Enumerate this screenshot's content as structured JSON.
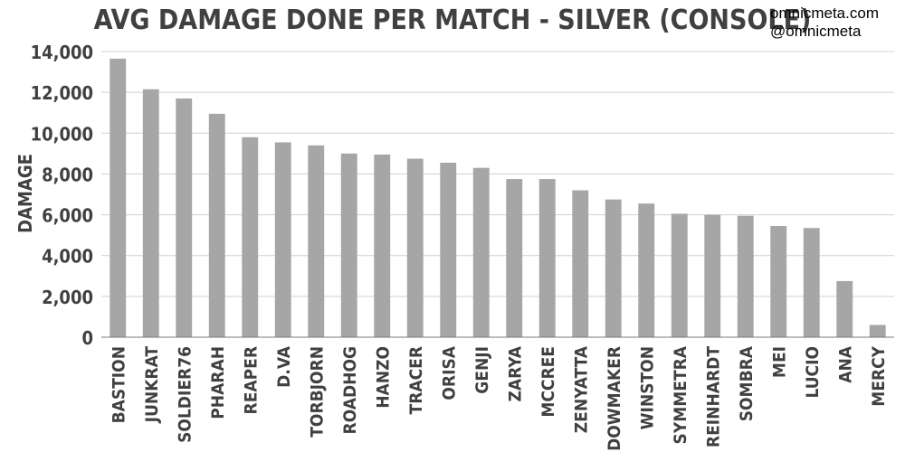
{
  "watermark": {
    "site": "omnicmeta.com",
    "handle": "@omnicmeta"
  },
  "colors": {
    "bar": "#a6a6a6",
    "grid": "#d0d0d0",
    "axis": "#7a7a7a",
    "text": "#404040"
  },
  "chart_data": {
    "type": "bar",
    "title": "AVG DAMAGE DONE PER MATCH - SILVER (CONSOLE)",
    "ylabel": "DAMAGE",
    "xlabel": "",
    "ylim": [
      0,
      14000
    ],
    "yticks": [
      0,
      2000,
      4000,
      6000,
      8000,
      10000,
      12000,
      14000
    ],
    "ytick_labels": [
      "0",
      "2,000",
      "4,000",
      "6,000",
      "8,000",
      "10,000",
      "12,000",
      "14,000"
    ],
    "grid": true,
    "legend": "none",
    "categories": [
      "BASTION",
      "JUNKRAT",
      "SOLDIER76",
      "PHARAH",
      "REAPER",
      "D.VA",
      "TORBJORN",
      "ROADHOG",
      "HANZO",
      "TRACER",
      "ORISA",
      "GENJI",
      "ZARYA",
      "MCCREE",
      "ZENYATTA",
      "WIDOWMAKER",
      "WINSTON",
      "SYMMETRA",
      "REINHARDT",
      "SOMBRA",
      "MEI",
      "LUCIO",
      "ANA",
      "MERCY"
    ],
    "values": [
      13650,
      12150,
      11700,
      10950,
      9800,
      9550,
      9400,
      9000,
      8950,
      8750,
      8550,
      8300,
      7750,
      7750,
      7200,
      6750,
      6550,
      6050,
      6000,
      5950,
      5450,
      5350,
      2750,
      600
    ]
  }
}
